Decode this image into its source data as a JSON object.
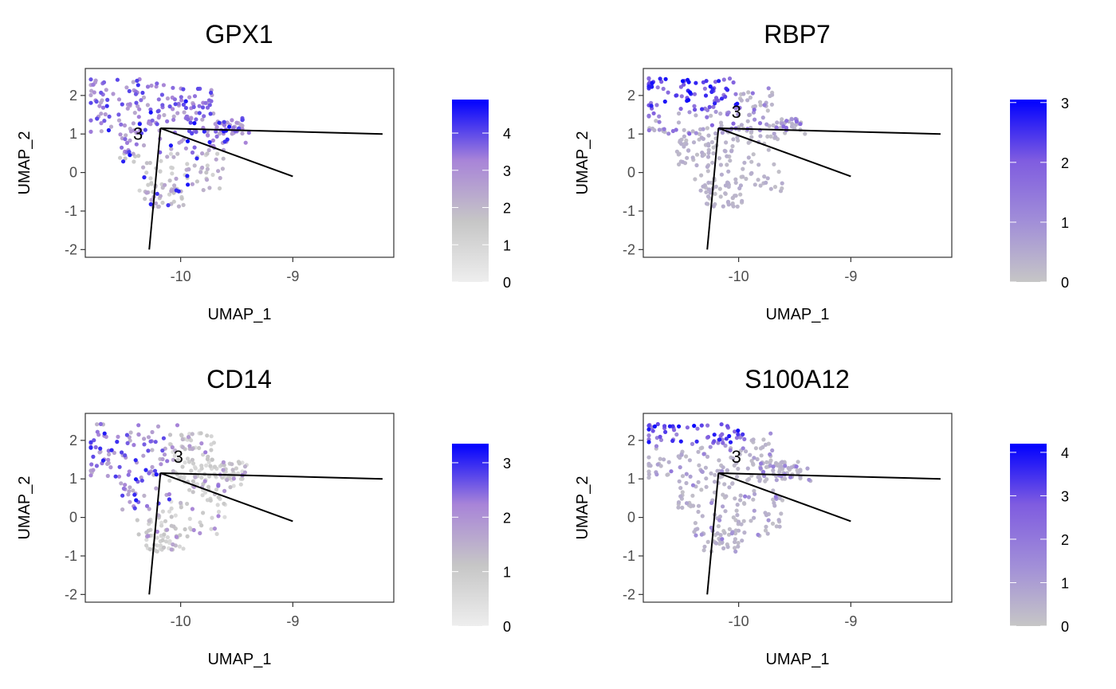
{
  "chart_data": [
    {
      "type": "scatter",
      "title": "GPX1",
      "xlabel": "UMAP_1",
      "ylabel": "UMAP_2",
      "xlim": [
        -10.85,
        -8.1
      ],
      "ylim": [
        -2.2,
        2.7
      ],
      "xticks": [
        -10,
        -9
      ],
      "yticks": [
        -2,
        -1,
        0,
        1,
        2
      ],
      "color_scale": {
        "min": 0,
        "max": 4.9,
        "ticks": [
          0,
          1,
          2,
          3,
          4
        ],
        "colors": [
          "#eeeeee",
          "#c6c6c6",
          "#a884d8",
          "#0000ff"
        ]
      },
      "branch_label": {
        "text": "3",
        "x": -10.38,
        "y": 0.85
      },
      "trajectory": [
        [
          [
            -10.28,
            -2.0
          ],
          [
            -10.18,
            1.15
          ]
        ],
        [
          [
            -10.18,
            1.15
          ],
          [
            -8.2,
            1.0
          ]
        ],
        [
          [
            -10.18,
            1.15
          ],
          [
            -9.0,
            -0.1
          ]
        ]
      ],
      "points": [],
      "seed": 11
    },
    {
      "type": "scatter",
      "title": "RBP7",
      "xlabel": "UMAP_1",
      "ylabel": "UMAP_2",
      "xlim": [
        -10.85,
        -8.1
      ],
      "ylim": [
        -2.2,
        2.7
      ],
      "xticks": [
        -10,
        -9
      ],
      "yticks": [
        -2,
        -1,
        0,
        1,
        2
      ],
      "color_scale": {
        "min": 0,
        "max": 3.05,
        "ticks": [
          0,
          1,
          2,
          3
        ],
        "colors": [
          "#c6c6c6",
          "#a18ed8",
          "#7f5ce0",
          "#0000ff"
        ]
      },
      "branch_label": {
        "text": "3",
        "x": -10.02,
        "y": 1.42
      },
      "trajectory": [
        [
          [
            -10.28,
            -2.0
          ],
          [
            -10.18,
            1.15
          ]
        ],
        [
          [
            -10.18,
            1.15
          ],
          [
            -8.2,
            1.0
          ]
        ],
        [
          [
            -10.18,
            1.15
          ],
          [
            -9.0,
            -0.1
          ]
        ]
      ],
      "points": [],
      "seed": 23
    },
    {
      "type": "scatter",
      "title": "CD14",
      "xlabel": "UMAP_1",
      "ylabel": "UMAP_2",
      "xlim": [
        -10.85,
        -8.1
      ],
      "ylim": [
        -2.2,
        2.7
      ],
      "xticks": [
        -10,
        -9
      ],
      "yticks": [
        -2,
        -1,
        0,
        1,
        2
      ],
      "color_scale": {
        "min": 0,
        "max": 3.35,
        "ticks": [
          0,
          1,
          2,
          3
        ],
        "colors": [
          "#eeeeee",
          "#c6c6c6",
          "#a884d8",
          "#0000ff"
        ]
      },
      "branch_label": {
        "text": "3",
        "x": -10.02,
        "y": 1.42
      },
      "trajectory": [
        [
          [
            -10.28,
            -2.0
          ],
          [
            -10.18,
            1.15
          ]
        ],
        [
          [
            -10.18,
            1.15
          ],
          [
            -8.2,
            1.0
          ]
        ],
        [
          [
            -10.18,
            1.15
          ],
          [
            -9.0,
            -0.1
          ]
        ]
      ],
      "points": [],
      "seed": 37
    },
    {
      "type": "scatter",
      "title": "S100A12",
      "xlabel": "UMAP_1",
      "ylabel": "UMAP_2",
      "xlim": [
        -10.85,
        -8.1
      ],
      "ylim": [
        -2.2,
        2.7
      ],
      "xticks": [
        -10,
        -9
      ],
      "yticks": [
        -2,
        -1,
        0,
        1,
        2
      ],
      "color_scale": {
        "min": 0,
        "max": 4.2,
        "ticks": [
          0,
          1,
          2,
          3,
          4
        ],
        "colors": [
          "#c6c6c6",
          "#a18ed8",
          "#7f5ce0",
          "#0000ff"
        ]
      },
      "branch_label": {
        "text": "3",
        "x": -10.02,
        "y": 1.42
      },
      "trajectory": [
        [
          [
            -10.28,
            -2.0
          ],
          [
            -10.18,
            1.15
          ]
        ],
        [
          [
            -10.18,
            1.15
          ],
          [
            -8.2,
            1.0
          ]
        ],
        [
          [
            -10.18,
            1.15
          ],
          [
            -9.0,
            -0.1
          ]
        ]
      ],
      "points": [],
      "seed": 53
    }
  ]
}
